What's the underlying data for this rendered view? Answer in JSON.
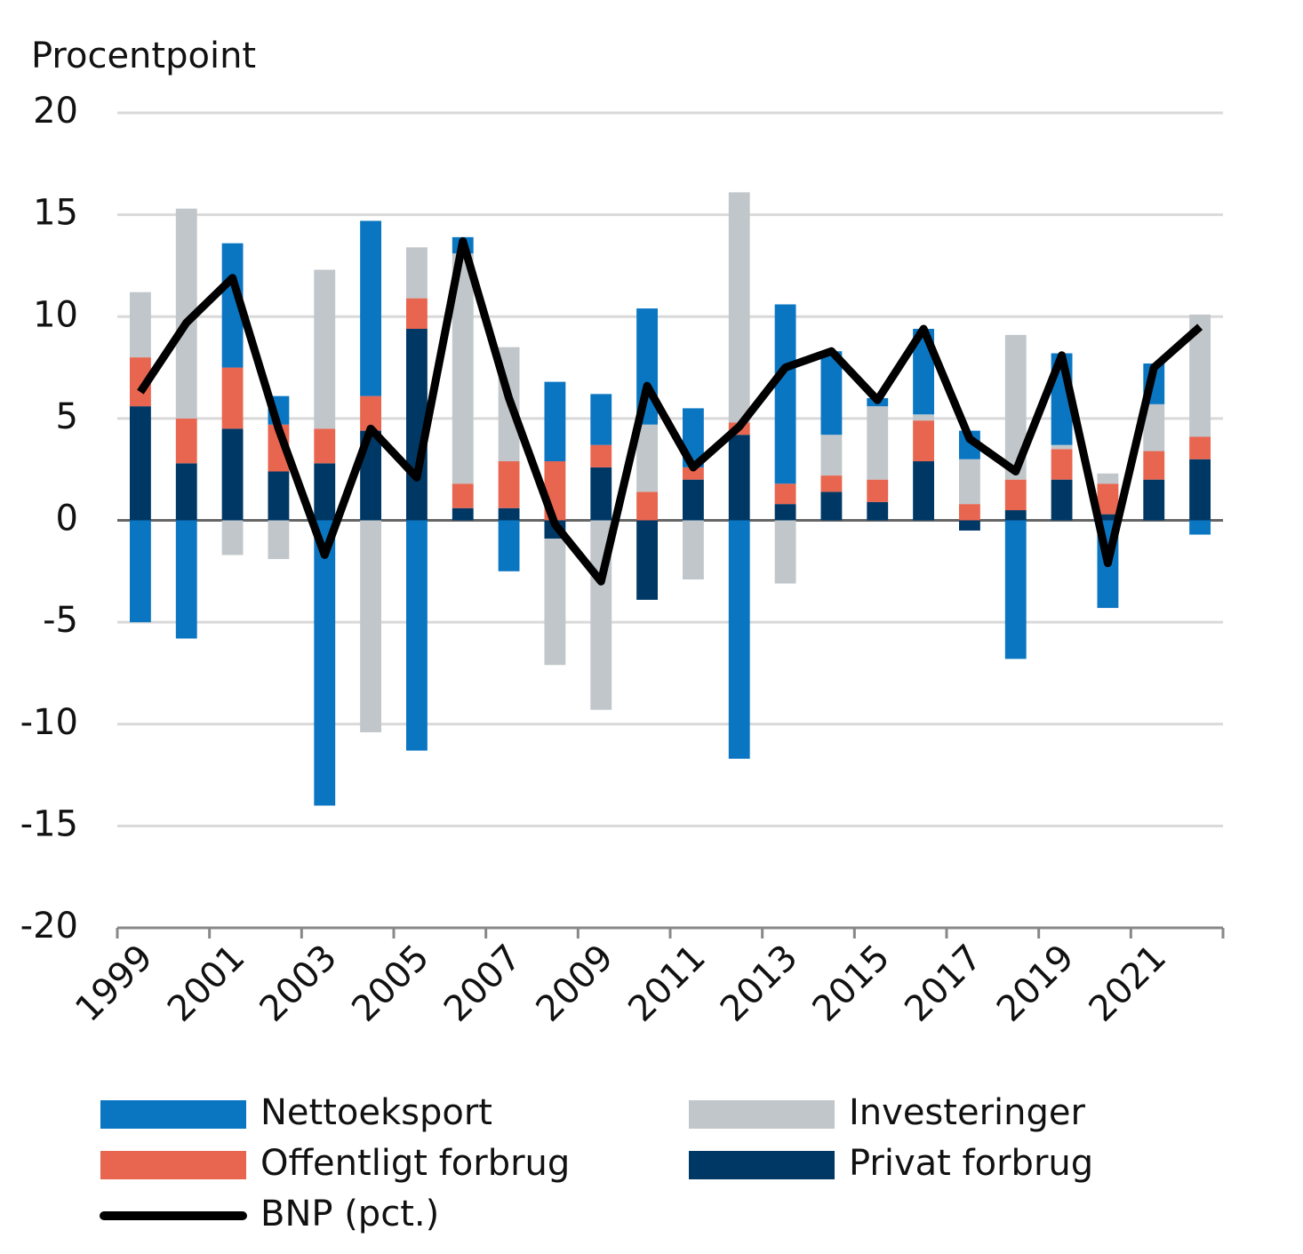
{
  "chart_data": {
    "type": "bar",
    "y_label": "Procentpoint",
    "categories": [
      "1999",
      null,
      "2001",
      null,
      "2003",
      null,
      "2005",
      null,
      "2007",
      null,
      "2009",
      null,
      "2011",
      null,
      "2013",
      null,
      "2015",
      null,
      "2017",
      null,
      "2019",
      null,
      "2021",
      null
    ],
    "ylim": [
      -20,
      20
    ],
    "yticks": [
      -20,
      -15,
      -10,
      -5,
      0,
      5,
      10,
      15,
      20
    ],
    "grid": true,
    "stacked": true,
    "series": [
      {
        "name": "Nettoeksport",
        "type": "bar",
        "color": "#0a76c2",
        "values": [
          -5.0,
          -5.8,
          6.1,
          1.4,
          -14.0,
          8.6,
          -11.3,
          0.8,
          -2.5,
          3.9,
          2.5,
          5.7,
          2.9,
          -11.7,
          8.8,
          4.1,
          0.4,
          4.2,
          1.4,
          -6.8,
          4.5,
          -4.3,
          2.0,
          -0.7
        ]
      },
      {
        "name": "Investeringer",
        "type": "bar",
        "color": "#c0c6ca",
        "values": [
          3.2,
          10.3,
          -1.7,
          -1.9,
          7.8,
          -10.4,
          2.5,
          11.3,
          5.6,
          -6.2,
          -9.3,
          3.3,
          -2.9,
          11.3,
          -3.1,
          2.0,
          3.6,
          0.3,
          2.2,
          7.1,
          0.2,
          0.5,
          2.3,
          6.0
        ]
      },
      {
        "name": "Offentligt forbrug",
        "type": "bar",
        "color": "#e8654f",
        "values": [
          2.4,
          2.2,
          3.0,
          2.3,
          1.7,
          1.7,
          1.5,
          1.2,
          2.3,
          2.9,
          1.1,
          1.4,
          0.6,
          0.6,
          1.0,
          0.8,
          1.1,
          2.0,
          0.8,
          1.5,
          1.5,
          1.5,
          1.4,
          1.1
        ]
      },
      {
        "name": "Privat forbrug",
        "type": "bar",
        "color": "#003865",
        "values": [
          5.6,
          2.8,
          4.5,
          2.4,
          2.8,
          4.4,
          9.4,
          0.6,
          0.6,
          -0.9,
          2.6,
          -3.9,
          2.0,
          4.2,
          0.8,
          1.4,
          0.9,
          2.9,
          -0.5,
          0.5,
          2.0,
          0.3,
          2.0,
          3.0
        ]
      },
      {
        "name": "BNP (pct.)",
        "type": "line",
        "color": "#000000",
        "values": [
          6.3,
          9.7,
          11.9,
          4.5,
          -1.7,
          4.5,
          2.1,
          13.7,
          6.0,
          -0.2,
          -3.0,
          6.6,
          2.6,
          4.6,
          7.5,
          8.3,
          5.9,
          9.4,
          4.0,
          2.4,
          8.1,
          -2.1,
          7.5,
          9.5
        ]
      }
    ]
  }
}
